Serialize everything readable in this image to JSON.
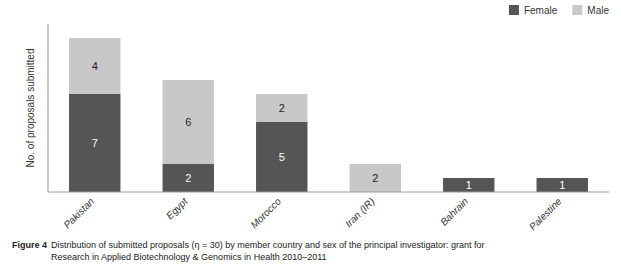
{
  "chart_data": {
    "type": "bar",
    "stacked": true,
    "categories": [
      "Pakistan",
      "Egypt",
      "Morocco",
      "Iran (IR)",
      "Bahrain",
      "Palestine"
    ],
    "series": [
      {
        "name": "Female",
        "color": "#555555",
        "values": [
          7,
          2,
          5,
          0,
          1,
          1
        ]
      },
      {
        "name": "Male",
        "color": "#c8c8c8",
        "values": [
          4,
          6,
          2,
          2,
          0,
          0
        ]
      }
    ],
    "y_label": "No. of proposals submitted",
    "ylim": [
      0,
      12
    ],
    "tick_labels": "x",
    "grid": false,
    "legend": "upper right",
    "data_labels": true,
    "annotations": [
      "Figure 4",
      "Distribution of submitted proposals (η = 30) by member country and sex of the principal investigator: grant for\nResearch in Applied Biotechnology & Genomics in Health 2010–2011"
    ]
  }
}
